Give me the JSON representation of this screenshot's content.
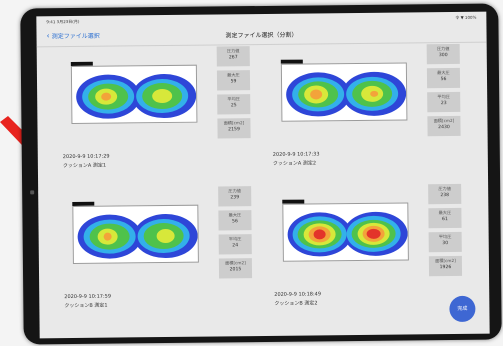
{
  "status": {
    "time": "9:41 3月23日(月)",
    "right": "令 ▼ 100%"
  },
  "nav": {
    "back_label": "測定ファイル選択",
    "title": "測定ファイル選択（分割）"
  },
  "stat_labels": {
    "contact": "圧力値",
    "max": "最大圧",
    "avg": "平均圧",
    "area": "面積[cm2]"
  },
  "panels": [
    {
      "timestamp": "2020-9-9 10:17:29",
      "name": "クッションA 測定1",
      "contact": "267",
      "max": "59",
      "avg": "25",
      "area": "2159"
    },
    {
      "timestamp": "2020-9-9 10:17:33",
      "name": "クッションA 測定2",
      "contact": "300",
      "max": "56",
      "avg": "23",
      "area": "2430"
    },
    {
      "timestamp": "2020-9-9 10:17:59",
      "name": "クッションB 測定1",
      "contact": "239",
      "max": "56",
      "avg": "24",
      "area": "2015"
    },
    {
      "timestamp": "2020-9-9 10:18:49",
      "name": "クッションB 測定2",
      "contact": "238",
      "max": "61",
      "avg": "30",
      "area": "1926"
    }
  ],
  "fab_label": "完成",
  "colors": {
    "accent": "#3e67d3",
    "arrow": "#e8231e",
    "bezel": "#151515"
  }
}
